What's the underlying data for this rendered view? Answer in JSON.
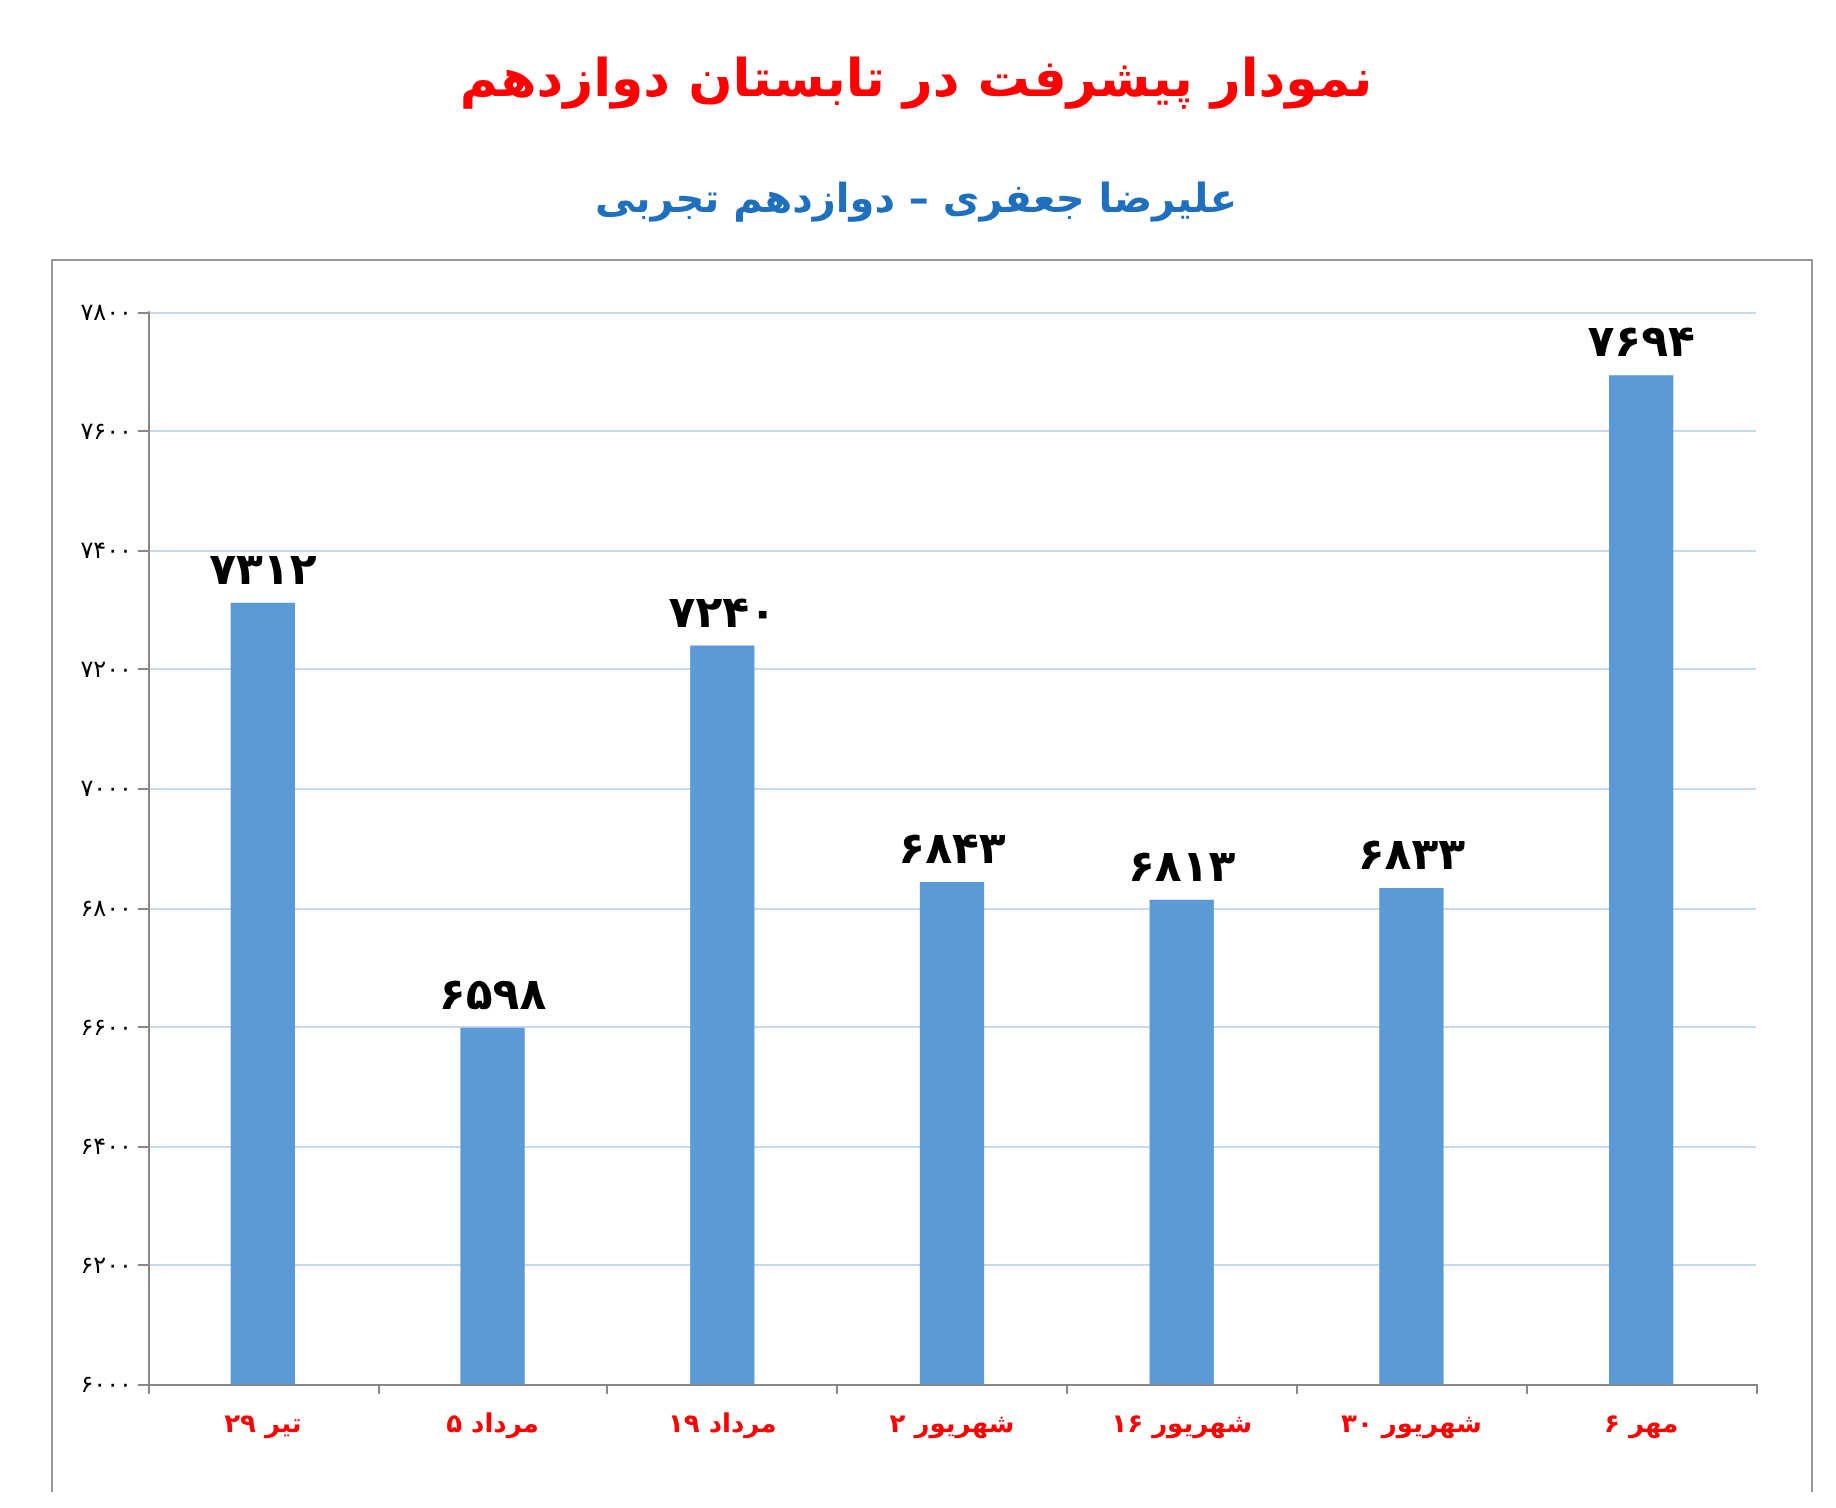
{
  "chart_data": {
    "type": "bar",
    "title": "نمودار پیشرفت در تابستان دوازدهم",
    "subtitle": "علیرضا جعفری – دوازدهم تجربی",
    "categories": [
      "۲۹ تیر",
      "۵ مرداد",
      "۱۹ مرداد",
      "۲ شهریور",
      "۱۶ شهریور",
      "۳۰ شهریور",
      "۶ مهر"
    ],
    "values": [
      7312,
      6598,
      7240,
      6843,
      6813,
      6833,
      7694
    ],
    "value_labels": [
      "۷۳۱۲",
      "۶۵۹۸",
      "۷۲۴۰",
      "۶۸۴۳",
      "۶۸۱۳",
      "۶۸۳۳",
      "۷۶۹۴"
    ],
    "color": "#5b9bd5",
    "ylim": [
      6000,
      7800
    ],
    "yticks": [
      {
        "value": 6000,
        "label": "۶۰۰۰"
      },
      {
        "value": 6200,
        "label": "۶۲۰۰"
      },
      {
        "value": 6400,
        "label": "۶۴۰۰"
      },
      {
        "value": 6600,
        "label": "۶۶۰۰"
      },
      {
        "value": 6800,
        "label": "۶۸۰۰"
      },
      {
        "value": 7000,
        "label": "۷۰۰۰"
      },
      {
        "value": 7200,
        "label": "۷۲۰۰"
      },
      {
        "value": 7400,
        "label": "۷۴۰۰"
      },
      {
        "value": 7600,
        "label": "۷۶۰۰"
      },
      {
        "value": 7800,
        "label": "۷۸۰۰"
      }
    ],
    "grid": "y"
  }
}
